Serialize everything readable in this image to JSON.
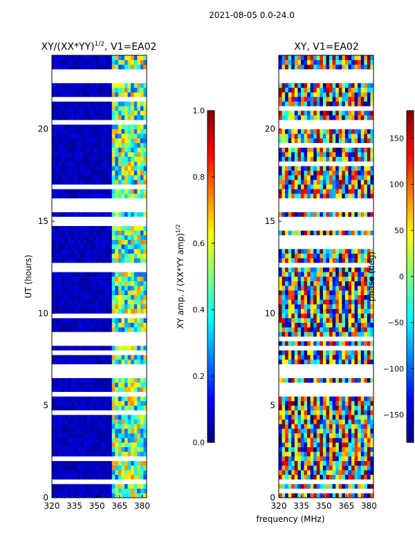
{
  "figure": {
    "suptitle": "2021-08-05 0.0-24.0",
    "shared_xlabel": "frequency (MHz)"
  },
  "colors": {
    "jet_stops": [
      "#00007f",
      "#0000ff",
      "#007fff",
      "#00ffff",
      "#7fff7f",
      "#ffff00",
      "#ff7f00",
      "#ff0000",
      "#7f0000"
    ]
  },
  "chart_data": [
    {
      "type": "heatmap",
      "title_base": "XY/(XX*YY)",
      "title_exp": "1/2",
      "title_suffix": ", V1=EA02",
      "xlabel": "",
      "ylabel": "UT (hours)",
      "xlim": [
        320,
        383
      ],
      "ylim": [
        0,
        24
      ],
      "xticks": [
        320,
        335,
        350,
        365,
        380
      ],
      "yticks": [
        0,
        5,
        10,
        15,
        20
      ],
      "colorbar": {
        "label_base": "XY amp. / (XX*YY amp)",
        "label_exp": "1/2",
        "range": [
          0.0,
          1.0
        ],
        "ticks": [
          "0.0",
          "0.2",
          "0.4",
          "0.6",
          "0.8",
          "1.0"
        ],
        "tick_values": [
          0.0,
          0.2,
          0.4,
          0.6,
          0.8,
          1.0
        ]
      },
      "active_band_mhz": [
        360,
        382
      ],
      "flagged_hours": [
        [
          22.5,
          23.3
        ],
        [
          20.2,
          20.6
        ],
        [
          15.6,
          16.2
        ],
        [
          14.8,
          15.2
        ],
        [
          6.6,
          7.2
        ],
        [
          0.8,
          1.0
        ],
        [
          2.2,
          2.35
        ],
        [
          12.6,
          12.8
        ],
        [
          8.6,
          8.75
        ],
        [
          5.5,
          5.7
        ]
      ]
    },
    {
      "type": "heatmap",
      "title": "XY, V1=EA02",
      "xlabel": "frequency (MHz)",
      "ylabel": "",
      "xlim": [
        320,
        383
      ],
      "ylim": [
        0,
        24
      ],
      "xticks": [
        320,
        335,
        350,
        365,
        380
      ],
      "yticks": [
        0,
        5,
        10,
        15,
        20
      ],
      "colorbar": {
        "label": "phase (deg)",
        "range": [
          -180,
          180
        ],
        "ticks": [
          "150",
          "100",
          "50",
          "0",
          "−50",
          "−100",
          "−150"
        ],
        "tick_values": [
          150,
          100,
          50,
          0,
          -50,
          -100,
          -150
        ]
      },
      "flagged_hours": [
        [
          22.5,
          23.3
        ],
        [
          20.2,
          20.6
        ],
        [
          15.6,
          16.2
        ],
        [
          14.8,
          15.2
        ],
        [
          6.6,
          7.2
        ],
        [
          0.8,
          1.0
        ],
        [
          2.2,
          2.35
        ],
        [
          12.6,
          12.8
        ],
        [
          8.6,
          8.75
        ],
        [
          5.5,
          5.7
        ]
      ]
    }
  ]
}
